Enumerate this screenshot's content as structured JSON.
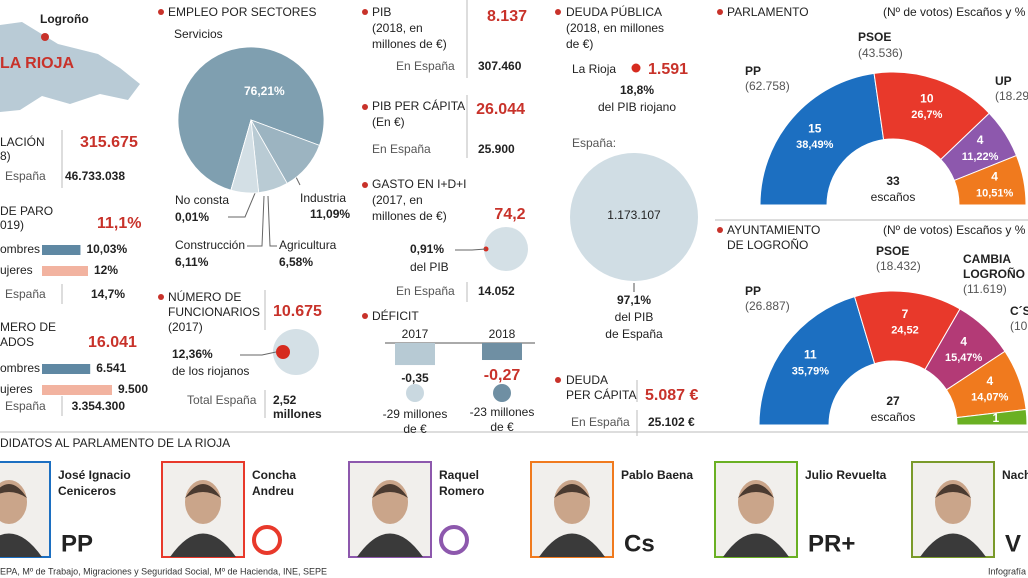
{
  "map": {
    "city": "Logroño",
    "region": "LA RIOJA"
  },
  "stats": [
    {
      "title": [
        "LACIÓN",
        "8)"
      ],
      "value": "315.675",
      "spain_label": "España",
      "spain_value": "46.733.038"
    },
    {
      "title": [
        "DE PARO",
        "019)"
      ],
      "value": "11,1%",
      "rows": [
        {
          "label": "ombres",
          "value": 10.03,
          "value_label": "10,03%",
          "color": "#5f88a3"
        },
        {
          "label": "ujeres",
          "value": 12,
          "value_label": "12%",
          "color": "#f2b3a0"
        }
      ],
      "spain_label": "España",
      "spain_value": "14,7%"
    },
    {
      "title": [
        "MERO DE",
        "ADOS"
      ],
      "value": "16.041",
      "rows": [
        {
          "label": "ombres",
          "value": 6541,
          "value_label": "6.541",
          "color": "#5f88a3"
        },
        {
          "label": "ujeres",
          "value": 9500,
          "value_label": "9.500",
          "color": "#f2b3a0"
        }
      ],
      "spain_label": "España",
      "spain_value": "3.354.300"
    }
  ],
  "empleo": {
    "title": "EMPLEO POR SECTORES",
    "slices": [
      {
        "name": "Servicios",
        "value": 76.21,
        "label": "76,21%",
        "color": "#7f9fb0"
      },
      {
        "name": "Industria",
        "value": 11.09,
        "label": "11,09%",
        "color": "#9cb4c1"
      },
      {
        "name": "Agricultura",
        "value": 6.58,
        "label": "6,58%",
        "color": "#b9cbd4"
      },
      {
        "name": "Construcción",
        "value": 6.11,
        "label": "6,11%",
        "color": "#d3dfe5"
      },
      {
        "name": "No consta",
        "value": 0.01,
        "label": "0,01%",
        "color": "#e6edf0"
      }
    ]
  },
  "funcionarios": {
    "title": [
      "NÚMERO DE",
      "FUNCIONARIOS",
      "(2017)"
    ],
    "value": "10.675",
    "share": "12,36%",
    "share_text": "de los riojanos",
    "spain_label": "Total España",
    "spain_value": [
      "2,52",
      "millones"
    ]
  },
  "pib": {
    "title": "PIB",
    "sub": [
      "(2018, en",
      "millones de €)"
    ],
    "value": "8.137",
    "spain_label": "En España",
    "spain_value": "307.460"
  },
  "pib_pc": {
    "title": "PIB PER CÁPITA",
    "sub": [
      "(En €)"
    ],
    "value": "26.044",
    "spain_label": "En España",
    "spain_value": "25.900"
  },
  "gasto": {
    "title": "GASTO EN I+D+I",
    "sub": [
      "(2017, en",
      "millones de €)"
    ],
    "value": "74,2",
    "share": "0,91%",
    "share_text": "del PIB",
    "spain_label": "En España",
    "spain_value": "14.052"
  },
  "deficit": {
    "title": "DÉFICIT",
    "years": [
      "2017",
      "2018"
    ],
    "values": [
      -0.35,
      -0.27
    ],
    "value_labels": [
      "-0,35",
      "-0,27"
    ],
    "colors": [
      "#b7cad4",
      "#6f8fa3"
    ],
    "notes": [
      [
        "-29 millones",
        "de €"
      ],
      [
        "-23 millones",
        "de €"
      ]
    ]
  },
  "deuda": {
    "title": "DEUDA PÚBLICA",
    "sub": [
      "(2018, en millones",
      "de €)"
    ],
    "region_label": "La Rioja",
    "region_value": "1.591",
    "region_share": "18,8%",
    "region_share_text": "del PIB riojano",
    "spain_label": "España:",
    "spain_value": "1.173.107",
    "spain_share": "97,1%",
    "spain_share_text": [
      "del PIB",
      "de España"
    ]
  },
  "deuda_pc": {
    "title": [
      "DEUDA",
      "PER CÁPITA"
    ],
    "value": "5.087 €",
    "spain_label": "En España",
    "spain_value": "25.102 €"
  },
  "parlamento": {
    "title": "PARLAMENTO",
    "legend": "(Nº de votos) Escaños y %",
    "total": 33,
    "total_label": "escaños",
    "parties": [
      {
        "name": "PP",
        "votes": "(62.758)",
        "seats": 15,
        "pct": "38,49%",
        "color": "#1c6fc1"
      },
      {
        "name": "PSOE",
        "votes": "(43.536)",
        "seats": 10,
        "pct": "26,7%",
        "color": "#e8392b"
      },
      {
        "name": "UP",
        "votes": "(18.29",
        "seats": 4,
        "pct": "11,22%",
        "color": "#8d58ad"
      },
      {
        "seats": 4,
        "pct": "10,51%",
        "color": "#f07a1e"
      }
    ]
  },
  "ayuntamiento": {
    "title": [
      "AYUNTAMIENTO",
      "DE LOGROÑO"
    ],
    "legend": "(Nº de votos) Escaños y %",
    "total": 27,
    "total_label": "escaños",
    "parties": [
      {
        "name": "PP",
        "votes": "(26.887)",
        "seats": 11,
        "pct": "35,79%",
        "color": "#1c6fc1"
      },
      {
        "name": "PSOE",
        "votes": "(18.432)",
        "seats": 7,
        "pct": "24,52",
        "color": "#e8392b"
      },
      {
        "name": [
          "CAMBIA",
          "LOGROÑO"
        ],
        "votes": "(11.619)",
        "seats": 4,
        "pct": "15,47%",
        "color": "#b33a76"
      },
      {
        "name": "C´S",
        "votes": "(10",
        "seats": 4,
        "pct": "14,07%",
        "color": "#f07a1e"
      },
      {
        "seats": 1,
        "color": "#6ab023"
      }
    ]
  },
  "candidates": {
    "title": "DIDATOS AL PARLAMENTO DE LA RIOJA",
    "people": [
      {
        "name": [
          "José Ignacio",
          "Ceniceros"
        ],
        "logo": "PP",
        "color": "#1c6fc1"
      },
      {
        "name": [
          "Concha",
          "Andreu"
        ],
        "color": "#e8392b"
      },
      {
        "name": [
          "Raquel",
          "Romero"
        ],
        "color": "#8d58ad"
      },
      {
        "name": [
          "Pablo Baena"
        ],
        "logo": "Cs",
        "color": "#f07a1e"
      },
      {
        "name": [
          "Julio Revuelta"
        ],
        "logo": "PR+",
        "color": "#6ab023"
      },
      {
        "name": [
          "Nach"
        ],
        "logo": "V",
        "color": "#7a9a2a"
      }
    ]
  },
  "footer": {
    "source": "EPA, Mº de Trabajo, Migraciones y Seguridad Social, Mº de Hacienda, INE, SEPE",
    "credit": "Infografía"
  }
}
